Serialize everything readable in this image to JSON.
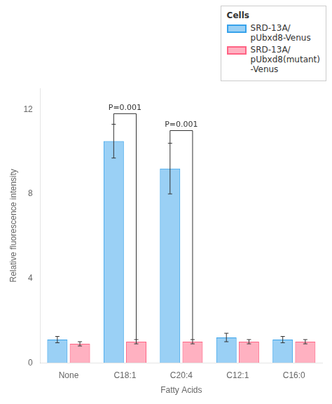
{
  "chart_data": {
    "type": "bar",
    "categories": [
      "None",
      "C18:1",
      "C20:4",
      "C12:1",
      "C16:0"
    ],
    "series": [
      {
        "name": "SRD-13A/\npUbxd8-Venus",
        "values": [
          1.1,
          10.5,
          9.2,
          1.2,
          1.1
        ],
        "errors": [
          0.15,
          0.8,
          1.2,
          0.2,
          0.15
        ]
      },
      {
        "name": "SRD-13A/\npUbxd8(mutant)\n-Venus",
        "values": [
          0.9,
          1.0,
          1.0,
          1.0,
          1.0
        ],
        "errors": [
          0.1,
          0.1,
          0.1,
          0.1,
          0.1
        ]
      }
    ],
    "xlabel": "Fatty Acids",
    "ylabel": "Relative fluorescence intensity",
    "legend_title": "Cells",
    "legend": "upper right",
    "ylim": [
      0,
      13
    ],
    "yticks": [
      0,
      4,
      8,
      12
    ],
    "grid": false,
    "annotations": [
      {
        "text": "P=0.001",
        "category": "C18:1",
        "y": 11.8
      },
      {
        "text": "P=0.001",
        "category": "C20:4",
        "y": 11.0
      }
    ]
  }
}
